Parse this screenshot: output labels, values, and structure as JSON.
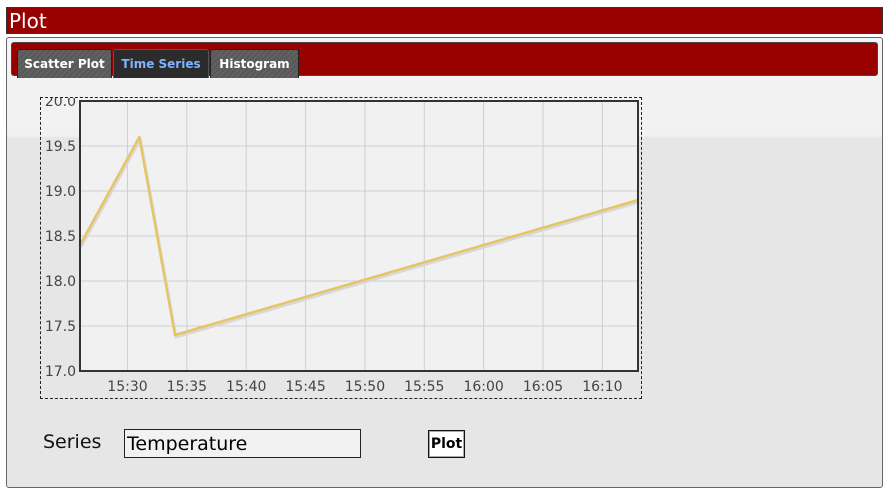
{
  "window": {
    "title": "Plot"
  },
  "tabs": [
    {
      "label": "Scatter Plot",
      "active": false
    },
    {
      "label": "Time Series",
      "active": true
    },
    {
      "label": "Histogram",
      "active": false
    }
  ],
  "colors": {
    "brand": "#990000",
    "line": "#e6c566",
    "active_tab_text": "#7fb2ff"
  },
  "chart_data": {
    "type": "line",
    "x": [
      "15:26",
      "15:31",
      "15:34",
      "16:13"
    ],
    "xlim": [
      "15:26",
      "16:13"
    ],
    "x_ticks": [
      "15:30",
      "15:35",
      "15:40",
      "15:45",
      "15:50",
      "15:55",
      "16:00",
      "16:05",
      "16:10"
    ],
    "series": [
      {
        "values": [
          18.4,
          19.6,
          17.4,
          18.9
        ]
      }
    ],
    "ylim": [
      17.0,
      20.0
    ],
    "y_ticks": [
      "17.0",
      "17.5",
      "18.0",
      "18.5",
      "19.0",
      "19.5",
      "20.0"
    ],
    "grid": true,
    "title": "",
    "xlabel": "",
    "ylabel": ""
  },
  "form": {
    "series_label": "Series",
    "series_value": "Temperature",
    "plot_button": "Plot"
  }
}
